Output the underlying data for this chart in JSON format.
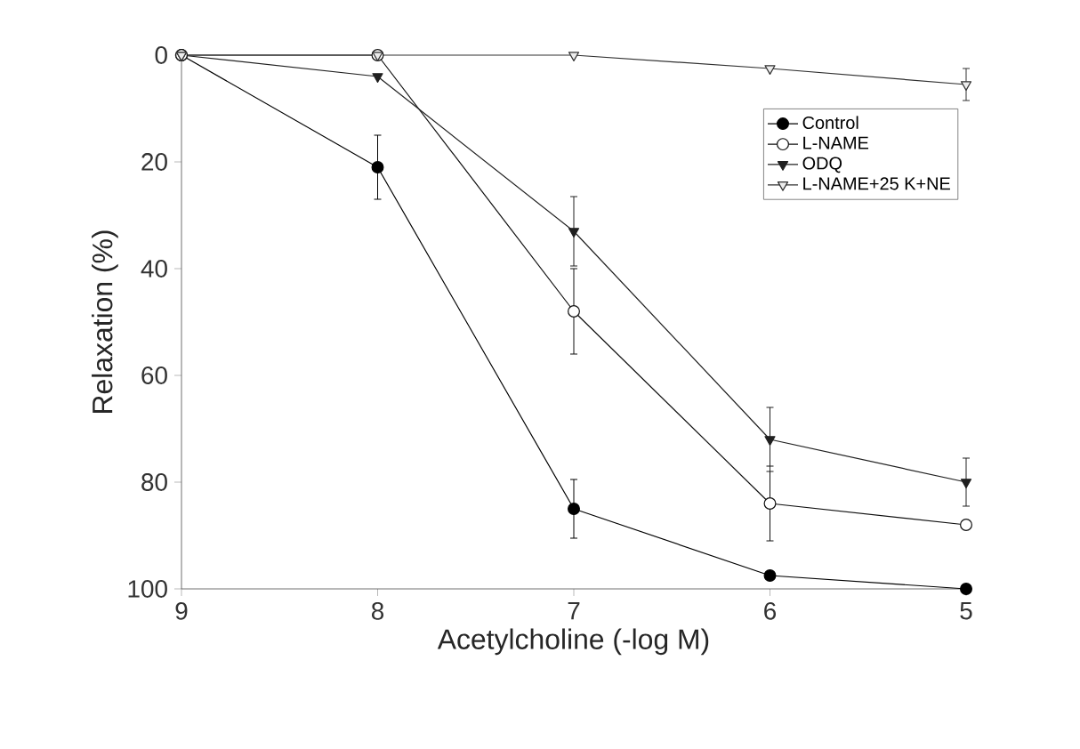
{
  "chart_data": {
    "type": "line",
    "xlabel": "Acetylcholine (-log M)",
    "ylabel": "Relaxation (%)",
    "x": [
      9,
      8,
      7,
      6,
      5
    ],
    "series": [
      {
        "name": "Control",
        "color": "#000000",
        "marker": "circle",
        "colors": [
          "#000000",
          "#000000",
          "#000000",
          "#000000",
          "#000000"
        ],
        "values": [
          0,
          21,
          85,
          97.5,
          100
        ],
        "errors": [
          null,
          6,
          5.5,
          null,
          null
        ]
      },
      {
        "name": "L-NAME",
        "color": "#101010",
        "marker": "circle",
        "colors": [
          "#ffffff",
          "#ffffff",
          "#ffffff",
          "#ffffff",
          "#ffffff"
        ],
        "values": [
          0,
          0,
          48,
          84,
          88
        ],
        "errors": [
          null,
          null,
          8,
          7,
          null
        ]
      },
      {
        "name": "ODQ",
        "color": "#202020",
        "marker": "triangle",
        "colors": [
          "#202020",
          "#202020",
          "#202020",
          "#202020",
          "#202020"
        ],
        "values": [
          0,
          4,
          33,
          72,
          80
        ],
        "errors": [
          null,
          null,
          6.5,
          6,
          4.5
        ]
      },
      {
        "name": "L-NAME+25 K+NE",
        "color": "#303030",
        "marker": "triangle",
        "colors": [
          "#ececec",
          "#ececec",
          "#ececec",
          "#ececec",
          "#ececec"
        ],
        "values": [
          0,
          0,
          0,
          2.5,
          5.5
        ],
        "errors": [
          null,
          null,
          null,
          null,
          3
        ]
      }
    ],
    "xlim": [
      9,
      5
    ],
    "xticks": [
      9,
      8,
      7,
      6,
      5
    ],
    "ylim": [
      100,
      0
    ],
    "yticks": [
      0,
      20,
      40,
      60,
      80,
      100
    ],
    "grid": false,
    "legend": "top right",
    "line_style": "solid"
  }
}
